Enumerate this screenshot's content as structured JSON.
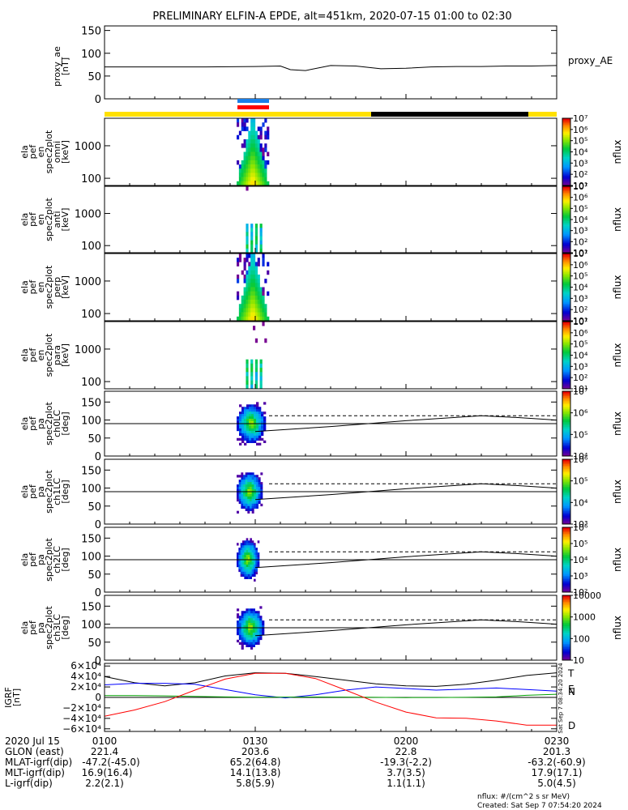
{
  "title": "PRELIMINARY ELFIN-A EPDE, alt=451km, 2020-07-15 01:00 to 02:30",
  "colors": {
    "sunlight": "#ffe000",
    "shadow": "#000000",
    "science_blue": "#1a7fe8",
    "science_red": "#ff0000",
    "bx": "#000000",
    "by": "#0000ff",
    "bz": "#00a000",
    "bd": "#ff0000"
  },
  "chart_data": [
    {
      "type": "line",
      "panel": "proxy_ae",
      "ylabel": [
        "proxy_ae",
        "[nT]"
      ],
      "legend": "proxy_AE",
      "ylim": [
        0,
        160
      ],
      "yticks": [
        0,
        50,
        100,
        150
      ],
      "x_minutes": [
        0,
        10,
        20,
        30,
        35,
        37,
        40,
        45,
        50,
        55,
        60,
        65,
        70,
        75,
        80,
        85,
        90
      ],
      "values": [
        70,
        70,
        70,
        71,
        72,
        64,
        62,
        73,
        72,
        66,
        67,
        70,
        71,
        71,
        72,
        72,
        73
      ]
    },
    {
      "type": "heatmap",
      "panel": "omni",
      "ylabel": [
        "ela",
        "pef",
        "en",
        "spec2plot",
        "omni",
        "[keV]"
      ],
      "yscale": "log",
      "ylim": [
        60,
        7000
      ],
      "yticks": [
        100,
        1000
      ],
      "colorbar": {
        "label": "nflux",
        "ticks": [
          "10¹",
          "10²",
          "10³",
          "10⁴",
          "10⁵",
          "10⁶",
          "10⁷"
        ]
      }
    },
    {
      "type": "heatmap",
      "panel": "anti",
      "ylabel": [
        "ela",
        "pef",
        "en",
        "spec2plot",
        "anti",
        "[keV]"
      ],
      "yscale": "log",
      "ylim": [
        60,
        7000
      ],
      "yticks": [
        100,
        1000
      ],
      "colorbar": {
        "label": "nflux",
        "ticks": [
          "10¹",
          "10²",
          "10³",
          "10⁴",
          "10⁵",
          "10⁶",
          "10⁷"
        ]
      }
    },
    {
      "type": "heatmap",
      "panel": "perp",
      "ylabel": [
        "ela",
        "pef",
        "en",
        "spec2plot",
        "perp",
        "[keV]"
      ],
      "yscale": "log",
      "ylim": [
        60,
        7000
      ],
      "yticks": [
        100,
        1000
      ],
      "colorbar": {
        "label": "nflux",
        "ticks": [
          "10¹",
          "10²",
          "10³",
          "10⁴",
          "10⁵",
          "10⁶",
          "10⁷"
        ]
      }
    },
    {
      "type": "heatmap",
      "panel": "para",
      "ylabel": [
        "ela",
        "pef",
        "en",
        "spec2plot",
        "para",
        "[keV]"
      ],
      "yscale": "log",
      "ylim": [
        60,
        7000
      ],
      "yticks": [
        100,
        1000
      ],
      "colorbar": {
        "label": "nflux",
        "ticks": [
          "10¹",
          "10²",
          "10³",
          "10⁴",
          "10⁵",
          "10⁶",
          "10⁷"
        ]
      }
    },
    {
      "type": "heatmap",
      "panel": "ch0LC",
      "ylabel": [
        "ela",
        "pef",
        "pa",
        "spec2plot",
        "ch0LC",
        "[deg]"
      ],
      "ylim": [
        0,
        180
      ],
      "yticks": [
        0,
        50,
        100,
        150
      ],
      "colorbar": {
        "label": "nflux",
        "ticks": [
          "10⁴",
          "10⁵",
          "10⁶",
          "10⁷"
        ]
      }
    },
    {
      "type": "heatmap",
      "panel": "ch1LC",
      "ylabel": [
        "ela",
        "pef",
        "pa",
        "spec2plot",
        "ch1LC",
        "[deg]"
      ],
      "ylim": [
        0,
        180
      ],
      "yticks": [
        0,
        50,
        100,
        150
      ],
      "colorbar": {
        "label": "nflux",
        "ticks": [
          "10³",
          "10⁴",
          "10⁵",
          "10⁶"
        ]
      }
    },
    {
      "type": "heatmap",
      "panel": "ch2LC",
      "ylabel": [
        "ela",
        "pef",
        "pa",
        "spec2plot",
        "ch2LC",
        "[deg]"
      ],
      "ylim": [
        0,
        180
      ],
      "yticks": [
        0,
        50,
        100,
        150
      ],
      "colorbar": {
        "label": "nflux",
        "ticks": [
          "10²",
          "10³",
          "10⁴",
          "10⁵",
          "10⁶"
        ]
      }
    },
    {
      "type": "heatmap",
      "panel": "ch3LC",
      "ylabel": [
        "ela",
        "pef",
        "pa",
        "spec2plot",
        "ch3LC",
        "[deg]"
      ],
      "ylim": [
        0,
        180
      ],
      "yticks": [
        0,
        50,
        100,
        150
      ],
      "colorbar": {
        "label": "nflux",
        "ticks": [
          "10",
          "100",
          "1000",
          "10000"
        ]
      }
    },
    {
      "type": "line",
      "panel": "igrf",
      "ylabel": [
        "IGRF",
        "[nT]"
      ],
      "ylim": [
        -65000,
        65000
      ],
      "yticks": [
        -60000,
        -40000,
        -20000,
        0,
        20000,
        40000,
        60000
      ],
      "ytick_labels": [
        "−6×10⁴",
        "−4×10⁴",
        "−2×10⁴",
        "0",
        "2×10⁴",
        "4×10⁴",
        "6×10⁴"
      ],
      "x_minutes": [
        0,
        6,
        12,
        18,
        24,
        30,
        36,
        42,
        48,
        54,
        60,
        66,
        72,
        78,
        84,
        90
      ],
      "series": [
        {
          "name": "T",
          "values": [
            40000,
            28000,
            22000,
            28000,
            41000,
            47000,
            46000,
            40000,
            33000,
            26000,
            22000,
            21000,
            25000,
            33000,
            42000,
            47000
          ]
        },
        {
          "name": "N",
          "values": [
            24000,
            27000,
            27000,
            25000,
            15000,
            5000,
            -1000,
            5000,
            14000,
            20000,
            17000,
            14000,
            16000,
            18000,
            15000,
            12000
          ]
        },
        {
          "name": "E",
          "values": [
            3500,
            3500,
            3000,
            2000,
            1000,
            500,
            600,
            800,
            600,
            200,
            -300,
            -200,
            200,
            1000,
            4000,
            6000
          ]
        },
        {
          "name": "D",
          "values": [
            -36000,
            -24000,
            -8000,
            14000,
            35000,
            46000,
            46000,
            36000,
            14000,
            -9000,
            -28000,
            -39000,
            -40000,
            -45000,
            -53000,
            -53000
          ]
        }
      ]
    }
  ],
  "x_axis": {
    "ticks": [
      "0100",
      "0130",
      "0200",
      "0230"
    ],
    "tick_minutes": [
      0,
      30,
      60,
      90
    ]
  },
  "ephemeris": {
    "date": "2020 Jul 15",
    "rows": [
      {
        "label": "GLON (east)",
        "values": [
          "221.4",
          "203.6",
          "22.8",
          "201.3"
        ]
      },
      {
        "label": "MLAT-igrf(dip)",
        "values": [
          "-47.2(-45.0)",
          "65.2(64.8)",
          "-19.3(-2.2)",
          "-63.2(-60.9)"
        ]
      },
      {
        "label": "MLT-igrf(dip)",
        "values": [
          "16.9(16.4)",
          "14.1(13.8)",
          "3.7(3.5)",
          "17.9(17.1)"
        ]
      },
      {
        "label": "L-igrf(dip)",
        "values": [
          "2.2(2.1)",
          "5.8(5.9)",
          "1.1(1.1)",
          "5.0(4.5)"
        ]
      }
    ]
  },
  "footer": {
    "units": "nflux: #/(cm^2 s sr MeV)",
    "created": "Created: Sat Sep  7 07:54:20 2024"
  },
  "side_timestamp": "Sat Sep  7 08:34:20 2024"
}
